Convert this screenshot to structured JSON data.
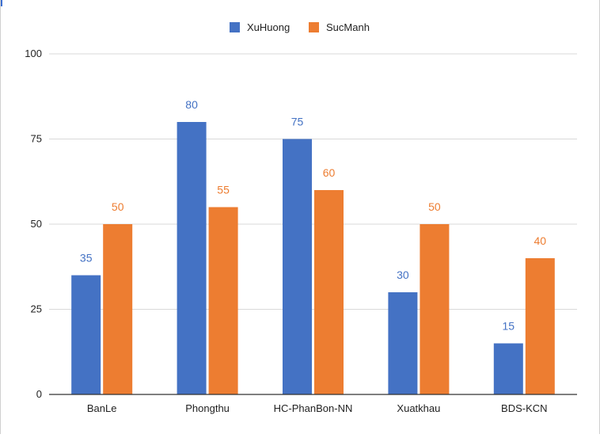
{
  "colors": {
    "series1": "#4472c4",
    "series2": "#ed7d31",
    "grid": "#d9d9d9",
    "axis": "#333333",
    "text": "#222222"
  },
  "chart_data": {
    "type": "bar",
    "title": "",
    "xlabel": "",
    "ylabel": "",
    "categories": [
      "BanLe",
      "Phongthu",
      "HC-PhanBon-NN",
      "Xuatkhau",
      "BDS-KCN"
    ],
    "series": [
      {
        "name": "XuHuong",
        "values": [
          35,
          80,
          75,
          30,
          15
        ]
      },
      {
        "name": "SucManh",
        "values": [
          50,
          55,
          60,
          50,
          40
        ]
      }
    ],
    "ylim": [
      0,
      100
    ],
    "yticks": [
      "0",
      "25",
      "50",
      "75",
      "100"
    ],
    "yticks_values": [
      0,
      25,
      50,
      75,
      100
    ],
    "grid": true,
    "legend": "top-center",
    "data_labels": true
  }
}
